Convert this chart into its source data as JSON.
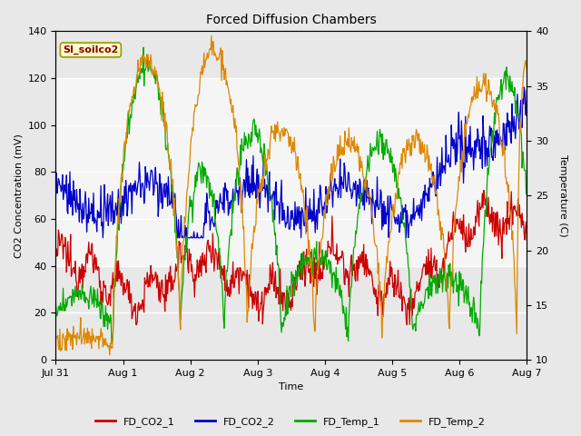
{
  "title": "Forced Diffusion Chambers",
  "xlabel": "Time",
  "ylabel_left": "CO2 Concentration (mV)",
  "ylabel_right": "Temperature (C)",
  "ylim_left": [
    0,
    140
  ],
  "ylim_right": [
    10,
    40
  ],
  "shade_band": [
    40,
    120
  ],
  "shade_color": "#e0e0e0",
  "background_color": "#e8e8e8",
  "plot_bg_color": "#e8e8e8",
  "label_text": "SI_soilco2",
  "label_box_facecolor": "#ffffcc",
  "label_box_edgecolor": "#999900",
  "label_text_color": "#8b0000",
  "colors": {
    "FD_CO2_1": "#cc0000",
    "FD_CO2_2": "#0000cc",
    "FD_Temp_1": "#00aa00",
    "FD_Temp_2": "#dd8800"
  },
  "xtick_labels": [
    "Jul 31",
    "Aug 1",
    "Aug 2",
    "Aug 3",
    "Aug 4",
    "Aug 5",
    "Aug 6",
    "Aug 7"
  ],
  "xtick_positions": [
    0,
    1,
    2,
    3,
    4,
    5,
    6,
    7
  ],
  "yticks_left": [
    0,
    20,
    40,
    60,
    80,
    100,
    120,
    140
  ],
  "yticks_right": [
    10,
    15,
    20,
    25,
    30,
    35,
    40
  ],
  "n_points": 700,
  "figsize": [
    6.4,
    4.8
  ],
  "dpi": 100
}
